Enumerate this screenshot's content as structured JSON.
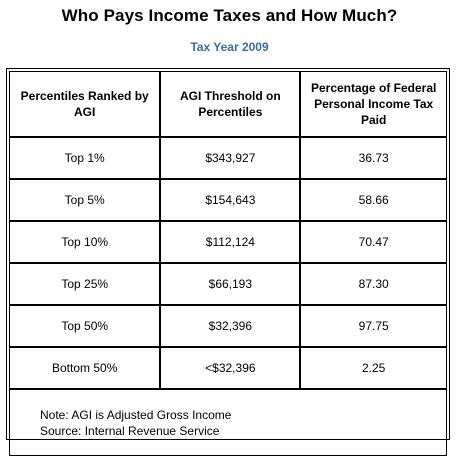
{
  "title": "Who Pays Income Taxes and How Much?",
  "subtitle": "Tax Year 2009",
  "headers": [
    "Percentiles Ranked by AGI",
    "AGI Threshold on Percentiles",
    "Percentage of Federal Personal Income Tax Paid"
  ],
  "rows": [
    {
      "percentile": "Top 1%",
      "threshold": "$343,927",
      "share": "36.73"
    },
    {
      "percentile": "Top 5%",
      "threshold": "$154,643",
      "share": "58.66"
    },
    {
      "percentile": "Top 10%",
      "threshold": "$112,124",
      "share": "70.47"
    },
    {
      "percentile": "Top 25%",
      "threshold": "$66,193",
      "share": "87.30"
    },
    {
      "percentile": "Top 50%",
      "threshold": "$32,396",
      "share": "97.75"
    },
    {
      "percentile": "Bottom 50%",
      "threshold": "<$32,396",
      "share": "2.25"
    }
  ],
  "notes": {
    "note": "Note: AGI is Adjusted Gross Income",
    "source": "Source: Internal Revenue Service"
  },
  "colors": {
    "subtitle": "#3a6b9c"
  }
}
